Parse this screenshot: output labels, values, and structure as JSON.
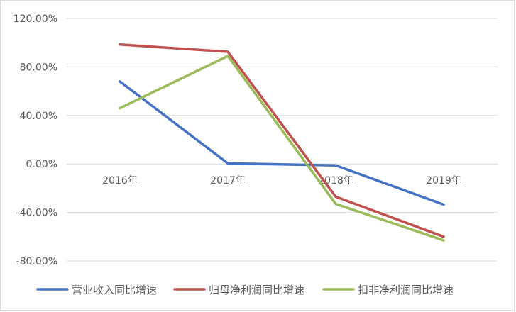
{
  "chart_data": {
    "type": "line",
    "categories": [
      "2016年",
      "2017年",
      "2018年",
      "2019年"
    ],
    "series": [
      {
        "name": "营业收入同比增速",
        "color": "#4472C4",
        "values": [
          68.0,
          0.5,
          -1.2,
          -33.5
        ]
      },
      {
        "name": "归母净利润同比增速",
        "color": "#C0504D",
        "values": [
          98.5,
          92.5,
          -27.0,
          -60.0
        ]
      },
      {
        "name": "扣非净利润同比增速",
        "color": "#9BBB59",
        "values": [
          46.0,
          89.0,
          -33.0,
          -63.0
        ]
      }
    ],
    "y_ticks": [
      "120.00%",
      "80.00%",
      "40.00%",
      "0.00%",
      "-40.00%",
      "-80.00%"
    ],
    "ylim": [
      -80,
      120
    ],
    "y_unit": "%",
    "grid": true,
    "legend_position": "bottom",
    "title": "",
    "xlabel": "",
    "ylabel": ""
  }
}
